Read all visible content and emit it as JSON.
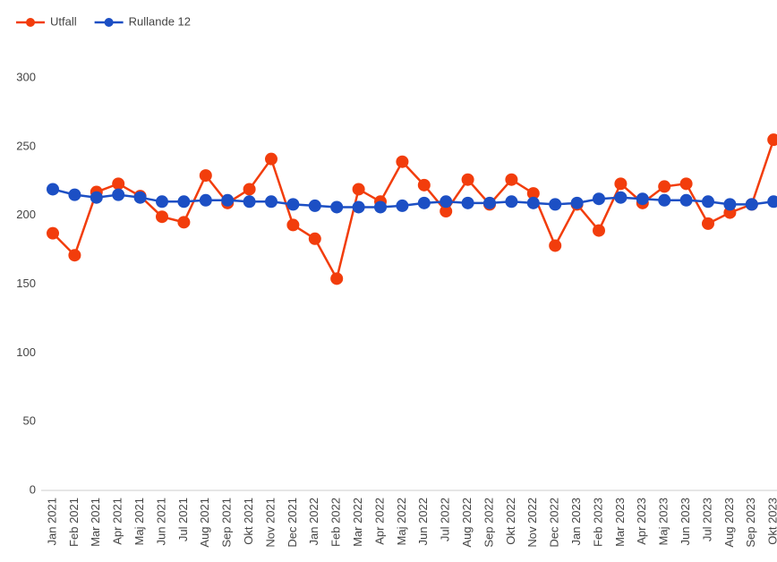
{
  "chart_data": {
    "type": "line",
    "categories": [
      "Jan 2021",
      "Feb 2021",
      "Mar 2021",
      "Apr 2021",
      "Maj 2021",
      "Jun 2021",
      "Jul 2021",
      "Aug 2021",
      "Sep 2021",
      "Okt 2021",
      "Nov 2021",
      "Dec 2021",
      "Jan 2022",
      "Feb 2022",
      "Mar 2022",
      "Apr 2022",
      "Maj 2022",
      "Jun 2022",
      "Jul 2022",
      "Aug 2022",
      "Sep 2022",
      "Okt 2022",
      "Nov 2022",
      "Dec 2022",
      "Jan 2023",
      "Feb 2023",
      "Mar 2023",
      "Apr 2023",
      "Maj 2023",
      "Jun 2023",
      "Jul 2023",
      "Aug 2023",
      "Sep 2023",
      "Okt 2023"
    ],
    "series": [
      {
        "name": "Utfall",
        "color": "#f23d0c",
        "values": [
          187,
          171,
          217,
          223,
          214,
          199,
          195,
          229,
          209,
          219,
          241,
          193,
          183,
          154,
          219,
          210,
          239,
          222,
          203,
          226,
          208,
          226,
          216,
          178,
          208,
          189,
          223,
          209,
          221,
          223,
          194,
          202,
          208,
          255
        ]
      },
      {
        "name": "Rullande 12",
        "color": "#1c4fc4",
        "values": [
          219,
          215,
          213,
          215,
          213,
          210,
          210,
          211,
          211,
          210,
          210,
          208,
          207,
          206,
          206,
          206,
          207,
          209,
          210,
          209,
          209,
          210,
          209,
          208,
          209,
          212,
          213,
          212,
          211,
          211,
          210,
          208,
          208,
          210
        ]
      }
    ],
    "ylim": [
      0,
      300
    ],
    "yticks": [
      0,
      50,
      100,
      150,
      200,
      250,
      300
    ],
    "grid": false,
    "legend": "top-left"
  }
}
